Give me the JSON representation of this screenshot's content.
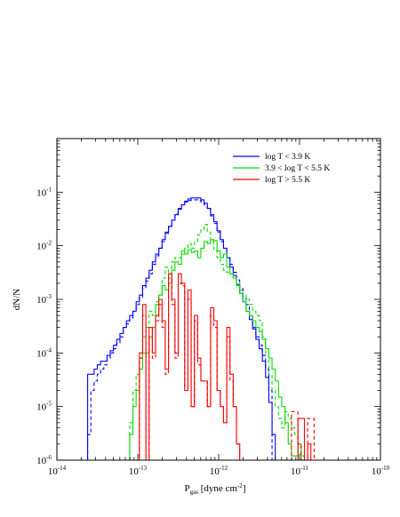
{
  "chart_data": {
    "type": "line",
    "step": true,
    "xscale": "log",
    "yscale": "log",
    "xlim": [
      1e-14,
      1e-10
    ],
    "ylim": [
      1e-06,
      1
    ],
    "xlabel": {
      "main": "P",
      "sub": "gas",
      "rest": " [dyne cm",
      "sup": "-2",
      "end": "]"
    },
    "ylabel": "dN/N",
    "legend_position": "top-right",
    "x_ticks": [
      {
        "value": 1e-14,
        "base": "10",
        "exp": "-14"
      },
      {
        "value": 1e-13,
        "base": "10",
        "exp": "-13"
      },
      {
        "value": 1e-12,
        "base": "10",
        "exp": "-12"
      },
      {
        "value": 1e-11,
        "base": "10",
        "exp": "-11"
      },
      {
        "value": 1e-10,
        "base": "10",
        "exp": "-10"
      }
    ],
    "y_ticks": [
      {
        "value": 1e-06,
        "base": "10",
        "exp": "-6"
      },
      {
        "value": 1e-05,
        "base": "10",
        "exp": "-5"
      },
      {
        "value": 0.0001,
        "base": "10",
        "exp": "-4"
      },
      {
        "value": 0.001,
        "base": "10",
        "exp": "-3"
      },
      {
        "value": 0.01,
        "base": "10",
        "exp": "-2"
      },
      {
        "value": 0.1,
        "base": "10",
        "exp": "-1"
      }
    ],
    "series": [
      {
        "name": "log T < 3.9 K",
        "color": "#0000ff",
        "style": "solid",
        "x_start": -13.62,
        "bin": 0.04,
        "values": [
          4e-05,
          4e-05,
          5e-05,
          6e-05,
          7e-05,
          7e-05,
          9e-05,
          0.00011,
          0.00014,
          0.00018,
          0.00023,
          0.0003,
          0.0004,
          0.0005,
          0.0006,
          0.0009,
          0.0012,
          0.0018,
          0.0025,
          0.0035,
          0.005,
          0.007,
          0.009,
          0.013,
          0.018,
          0.023,
          0.03,
          0.038,
          0.048,
          0.058,
          0.068,
          0.075,
          0.078,
          0.078,
          0.078,
          0.072,
          0.062,
          0.05,
          0.038,
          0.028,
          0.019,
          0.013,
          0.009,
          0.006,
          0.004,
          0.0028,
          0.0019,
          0.0013,
          0.0009,
          0.0006,
          0.00042,
          0.00028,
          0.00018,
          0.00012,
          7e-05,
          3.5e-05,
          1.2e-05,
          3e-06
        ]
      },
      {
        "name": "",
        "color": "#0000ff",
        "style": "dashed",
        "x_start": -13.62,
        "bin": 0.04,
        "values": [
          3e-06,
          2e-05,
          3e-05,
          4e-05,
          5e-05,
          6e-05,
          8e-05,
          0.0001,
          0.00012,
          0.00015,
          0.0002,
          0.0003,
          0.00035,
          0.00045,
          0.0006,
          0.0008,
          0.0011,
          0.0016,
          0.0022,
          0.003,
          0.0045,
          0.0065,
          0.009,
          0.012,
          0.017,
          0.022,
          0.03,
          0.04,
          0.05,
          0.058,
          0.065,
          0.07,
          0.072,
          0.072,
          0.07,
          0.066,
          0.058,
          0.048,
          0.036,
          0.026,
          0.018,
          0.012,
          0.009,
          0.006,
          0.0045,
          0.0032,
          0.0023,
          0.0016,
          0.0011,
          0.0008,
          0.0005,
          0.0003,
          0.0002,
          0.00014,
          9e-05,
          5e-05,
          2e-05
        ]
      },
      {
        "name": "3.9 < log T < 5.5 K",
        "color": "#00dd00",
        "style": "solid",
        "x_start": -13.1,
        "bin": 0.04,
        "values": [
          3e-06,
          1e-05,
          2e-05,
          5e-05,
          0.0001,
          0.0001,
          0.0002,
          0.0003,
          0.0008,
          0.0012,
          0.0018,
          0.0015,
          0.002,
          0.0035,
          0.005,
          0.0045,
          0.008,
          0.007,
          0.0085,
          0.0075,
          0.008,
          0.006,
          0.009,
          0.012,
          0.011,
          0.013,
          0.0125,
          0.008,
          0.006,
          0.007,
          0.004,
          0.003,
          0.0025,
          0.0018,
          0.0013,
          0.0009,
          0.0006,
          0.0005,
          0.0004,
          0.0003,
          0.00025,
          0.00018,
          0.00012,
          8e-05,
          5e-05,
          3e-05,
          1.5e-05,
          1e-05,
          5e-06,
          2e-06,
          1.2e-06,
          1.2e-06,
          2e-06,
          1.2e-06,
          8e-07
        ]
      },
      {
        "name": "",
        "color": "#00dd00",
        "style": "dashed",
        "x_start": -13.1,
        "bin": 0.04,
        "values": [
          5e-06,
          2e-05,
          4e-05,
          8e-05,
          0.0002,
          0.0003,
          0.0006,
          0.0005,
          0.0009,
          0.0012,
          0.0025,
          0.004,
          0.003,
          0.005,
          0.006,
          0.006,
          0.007,
          0.009,
          0.011,
          0.009,
          0.012,
          0.016,
          0.02,
          0.025,
          0.018,
          0.012,
          0.008,
          0.006,
          0.0045,
          0.0035,
          0.0032,
          0.003,
          0.0025,
          0.002,
          0.0015,
          0.0012,
          0.001,
          0.0008,
          0.0006,
          0.0005,
          0.0004,
          0.0002,
          0.0001,
          4e-05,
          2e-05,
          1e-05,
          6e-06,
          4e-06,
          8e-06,
          6e-06,
          4e-06,
          3e-06,
          2e-06
        ]
      },
      {
        "name": "log T > 5.5 K",
        "color": "#ff0000",
        "style": "solid",
        "x_start": -13.02,
        "bin": 0.04,
        "values": [
          1e-06,
          0.0001,
          0.0008,
          1e-06,
          0.0003,
          0.0001,
          0.0005,
          0.001,
          0.0004,
          5e-05,
          0.003,
          0.001,
          0.0001,
          0.003,
          0.002,
          2e-05,
          0.0015,
          1e-05,
          0.0005,
          8e-05,
          3e-05,
          3e-05,
          1e-05,
          0.0007,
          0.0004,
          2e-05,
          1e-05,
          5e-06,
          0.0003,
          4e-05,
          1e-05,
          2e-06,
          1e-06,
          1e-06,
          1e-06,
          1e-06,
          1e-06,
          1e-06,
          1e-06,
          1e-06,
          1e-06,
          1e-06,
          1e-06,
          1e-06,
          1e-06,
          1e-06,
          1e-06,
          1e-06,
          1e-06,
          1e-06,
          6e-06,
          6e-06,
          1e-06,
          2e-06,
          1e-06
        ]
      },
      {
        "name": "",
        "color": "#ff0000",
        "style": "dashed",
        "x_start": -13.02,
        "bin": 0.04,
        "values": [
          1e-06,
          8e-05,
          0.0005,
          1e-06,
          0.0002,
          8e-05,
          0.0004,
          0.0008,
          0.0003,
          4e-05,
          0.0025,
          0.0008,
          8e-05,
          0.002,
          0.0018,
          2e-05,
          0.001,
          1e-05,
          0.0004,
          6e-05,
          3e-05,
          3e-05,
          1e-05,
          0.0005,
          0.0003,
          2e-05,
          1e-05,
          5e-06,
          0.0002,
          3e-05,
          1e-05,
          2e-06,
          1e-06,
          1e-06,
          1e-06,
          1e-06,
          1e-06,
          1e-06,
          1e-06,
          1e-06,
          1e-06,
          1e-06,
          1e-06,
          1e-06,
          1e-06,
          1e-06,
          1e-06,
          1e-06,
          8e-06,
          8e-06,
          2e-06,
          1e-06,
          1e-06,
          6e-06,
          6e-06,
          1e-06
        ]
      }
    ]
  }
}
